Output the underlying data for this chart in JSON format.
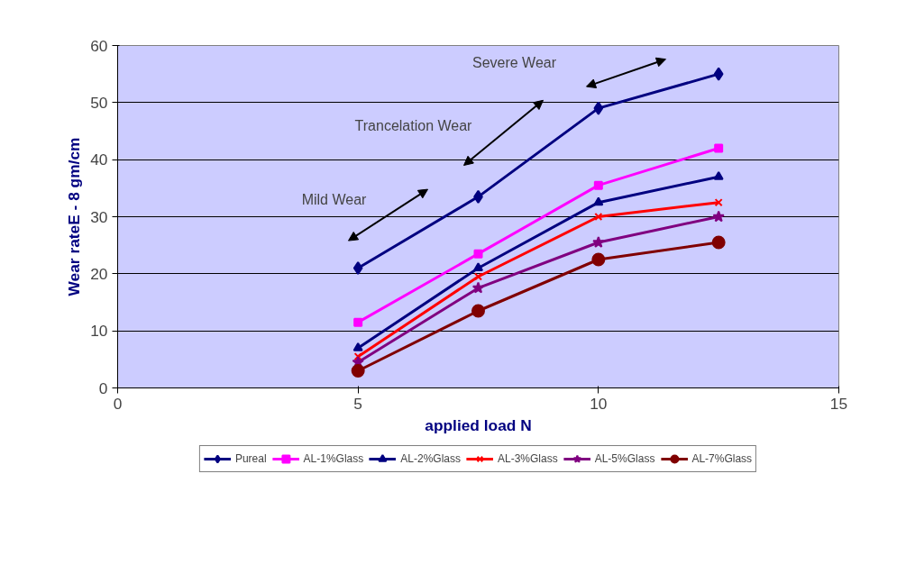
{
  "chart_data": {
    "type": "line",
    "xlabel": "applied load N",
    "ylabel": "Wear rateE - 8 gm/cm",
    "x": [
      5,
      7.5,
      10,
      12.5
    ],
    "series": [
      {
        "name": "Pureal",
        "color": "#000080",
        "marker": "diamond",
        "values": [
          21,
          33.5,
          49,
          55
        ]
      },
      {
        "name": "AL-1%Glass",
        "color": "#ff00ff",
        "marker": "square",
        "values": [
          11.5,
          23.5,
          35.5,
          42
        ]
      },
      {
        "name": "AL-2%Glass",
        "color": "#000080",
        "marker": "triangle",
        "values": [
          7,
          21,
          32.5,
          37
        ]
      },
      {
        "name": "AL-3%Glass",
        "color": "#ff0000",
        "marker": "cross",
        "values": [
          5.5,
          19.5,
          30,
          32.5
        ]
      },
      {
        "name": "AL-5%Glass",
        "color": "#800080",
        "marker": "star",
        "values": [
          4.5,
          17.5,
          25.5,
          30
        ]
      },
      {
        "name": "AL-7%Glass",
        "color": "#800000",
        "marker": "circle",
        "values": [
          3,
          13.5,
          22.5,
          25.5
        ]
      }
    ],
    "annotations": [
      "Mild Wear",
      "Trancelation Wear",
      "Severe Wear"
    ],
    "xlim": [
      0,
      15
    ],
    "xticks": [
      0,
      5,
      10,
      15
    ],
    "ylim": [
      0,
      60
    ],
    "yticks": [
      0,
      10,
      20,
      30,
      40,
      50,
      60
    ],
    "grid": "y",
    "legend": "bottom"
  }
}
